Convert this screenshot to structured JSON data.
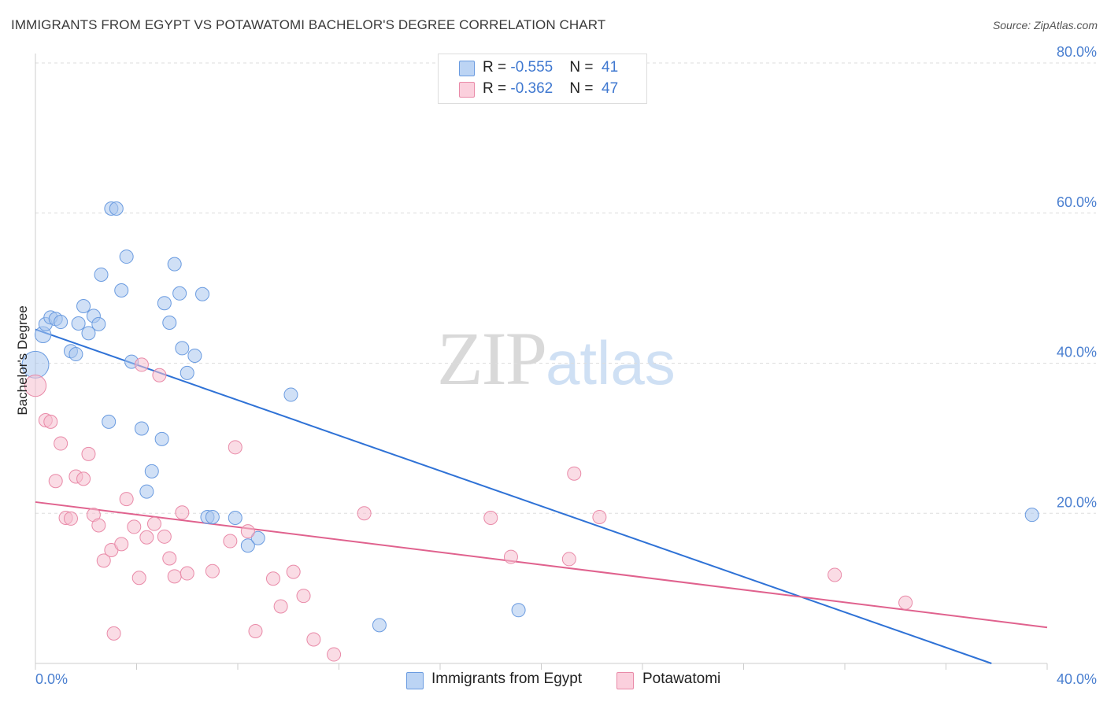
{
  "header": {
    "title": "IMMIGRANTS FROM EGYPT VS POTAWATOMI BACHELOR'S DEGREE CORRELATION CHART",
    "source": "Source: ZipAtlas.com"
  },
  "watermark": {
    "zip": "ZIP",
    "atlas": "atlas"
  },
  "legend": {
    "series1": {
      "r_label": "R = ",
      "r_value": "-0.555",
      "n_label": "N = ",
      "n_value": "41"
    },
    "series2": {
      "r_label": "R = ",
      "r_value": "-0.362",
      "n_label": "N = ",
      "n_value": "47"
    }
  },
  "bottom_legend": {
    "series1": "Immigrants from Egypt",
    "series2": "Potawatomi"
  },
  "colors": {
    "blue_fill": "#a9c6ef",
    "blue_stroke": "#6a9be0",
    "blue_line": "#2f72d6",
    "pink_fill": "#f6bfd0",
    "pink_stroke": "#e98aa8",
    "pink_line": "#e0628e",
    "tick": "#4a7fd0",
    "grid": "#dddddd"
  },
  "chart_data": {
    "type": "scatter",
    "title": "IMMIGRANTS FROM EGYPT VS POTAWATOMI BACHELOR'S DEGREE CORRELATION CHART",
    "xlabel": "",
    "ylabel": "Bachelor's Degree",
    "xlim": [
      0,
      40
    ],
    "ylim": [
      0,
      80
    ],
    "x_tick_labels": [
      "0.0%",
      "40.0%"
    ],
    "y_ticks": [
      20,
      40,
      60,
      80
    ],
    "y_tick_labels": [
      "20.0%",
      "40.0%",
      "60.0%",
      "80.0%"
    ],
    "grid": true,
    "legend_position": "top-center",
    "series": [
      {
        "name": "Immigrants from Egypt",
        "color": "#a9c6ef",
        "trend": {
          "x": [
            0,
            37.8
          ],
          "y": [
            44.5,
            0
          ]
        },
        "points": [
          {
            "x": 0.3,
            "y": 43.8,
            "s": 1.2
          },
          {
            "x": 0.4,
            "y": 45.2
          },
          {
            "x": 0.6,
            "y": 46.1
          },
          {
            "x": 0.8,
            "y": 45.9
          },
          {
            "x": 1.0,
            "y": 45.5
          },
          {
            "x": 1.4,
            "y": 41.6
          },
          {
            "x": 1.6,
            "y": 41.2
          },
          {
            "x": 1.9,
            "y": 47.6
          },
          {
            "x": 2.1,
            "y": 44.0
          },
          {
            "x": 2.3,
            "y": 46.3
          },
          {
            "x": 2.5,
            "y": 45.2
          },
          {
            "x": 2.6,
            "y": 51.8
          },
          {
            "x": 2.9,
            "y": 32.2
          },
          {
            "x": 3.0,
            "y": 60.6
          },
          {
            "x": 3.2,
            "y": 60.6
          },
          {
            "x": 3.4,
            "y": 49.7
          },
          {
            "x": 3.6,
            "y": 54.2
          },
          {
            "x": 3.8,
            "y": 40.2
          },
          {
            "x": 4.2,
            "y": 31.3
          },
          {
            "x": 4.4,
            "y": 22.9
          },
          {
            "x": 4.6,
            "y": 25.6
          },
          {
            "x": 5.0,
            "y": 29.9
          },
          {
            "x": 5.1,
            "y": 48.0
          },
          {
            "x": 5.3,
            "y": 45.4
          },
          {
            "x": 5.5,
            "y": 53.2
          },
          {
            "x": 5.7,
            "y": 49.3
          },
          {
            "x": 5.8,
            "y": 42.0
          },
          {
            "x": 6.0,
            "y": 38.7
          },
          {
            "x": 6.3,
            "y": 41.0
          },
          {
            "x": 6.6,
            "y": 49.2
          },
          {
            "x": 6.8,
            "y": 19.5
          },
          {
            "x": 7.0,
            "y": 19.5
          },
          {
            "x": 7.9,
            "y": 19.4
          },
          {
            "x": 8.4,
            "y": 15.7
          },
          {
            "x": 8.8,
            "y": 16.7
          },
          {
            "x": 10.1,
            "y": 35.8
          },
          {
            "x": 13.6,
            "y": 5.1
          },
          {
            "x": 19.1,
            "y": 7.1
          },
          {
            "x": 39.4,
            "y": 19.8
          },
          {
            "x": 0.0,
            "y": 39.8,
            "s": 2.0
          },
          {
            "x": 1.7,
            "y": 45.3
          }
        ]
      },
      {
        "name": "Potawatomi",
        "color": "#f6bfd0",
        "trend": {
          "x": [
            0,
            40
          ],
          "y": [
            21.5,
            4.8
          ]
        },
        "points": [
          {
            "x": 0.0,
            "y": 37.0,
            "s": 1.6
          },
          {
            "x": 0.4,
            "y": 32.4
          },
          {
            "x": 0.6,
            "y": 32.2
          },
          {
            "x": 0.8,
            "y": 24.3
          },
          {
            "x": 1.0,
            "y": 29.3
          },
          {
            "x": 1.2,
            "y": 19.4
          },
          {
            "x": 1.4,
            "y": 19.3
          },
          {
            "x": 1.6,
            "y": 24.9
          },
          {
            "x": 1.9,
            "y": 24.6
          },
          {
            "x": 2.1,
            "y": 27.9
          },
          {
            "x": 2.3,
            "y": 19.8
          },
          {
            "x": 2.5,
            "y": 18.4
          },
          {
            "x": 2.7,
            "y": 13.7
          },
          {
            "x": 3.0,
            "y": 15.1
          },
          {
            "x": 3.1,
            "y": 4.0
          },
          {
            "x": 3.4,
            "y": 15.9
          },
          {
            "x": 3.6,
            "y": 21.9
          },
          {
            "x": 3.9,
            "y": 18.2
          },
          {
            "x": 4.1,
            "y": 11.4
          },
          {
            "x": 4.2,
            "y": 39.8
          },
          {
            "x": 4.4,
            "y": 16.8
          },
          {
            "x": 4.7,
            "y": 18.6
          },
          {
            "x": 4.9,
            "y": 38.4
          },
          {
            "x": 5.1,
            "y": 16.9
          },
          {
            "x": 5.3,
            "y": 14.0
          },
          {
            "x": 5.5,
            "y": 11.6
          },
          {
            "x": 5.8,
            "y": 20.1
          },
          {
            "x": 6.0,
            "y": 12.0
          },
          {
            "x": 7.0,
            "y": 12.3
          },
          {
            "x": 7.7,
            "y": 16.3
          },
          {
            "x": 7.9,
            "y": 28.8
          },
          {
            "x": 8.4,
            "y": 17.6
          },
          {
            "x": 8.7,
            "y": 4.3
          },
          {
            "x": 9.4,
            "y": 11.3
          },
          {
            "x": 9.7,
            "y": 7.6
          },
          {
            "x": 10.2,
            "y": 12.2
          },
          {
            "x": 10.6,
            "y": 9.0
          },
          {
            "x": 11.0,
            "y": 3.2
          },
          {
            "x": 11.8,
            "y": 1.2
          },
          {
            "x": 13.0,
            "y": 20.0
          },
          {
            "x": 18.0,
            "y": 19.4
          },
          {
            "x": 18.8,
            "y": 14.2
          },
          {
            "x": 21.1,
            "y": 13.9
          },
          {
            "x": 21.3,
            "y": 25.3
          },
          {
            "x": 22.3,
            "y": 19.5
          },
          {
            "x": 31.6,
            "y": 11.8
          },
          {
            "x": 34.4,
            "y": 8.1
          }
        ]
      }
    ]
  }
}
